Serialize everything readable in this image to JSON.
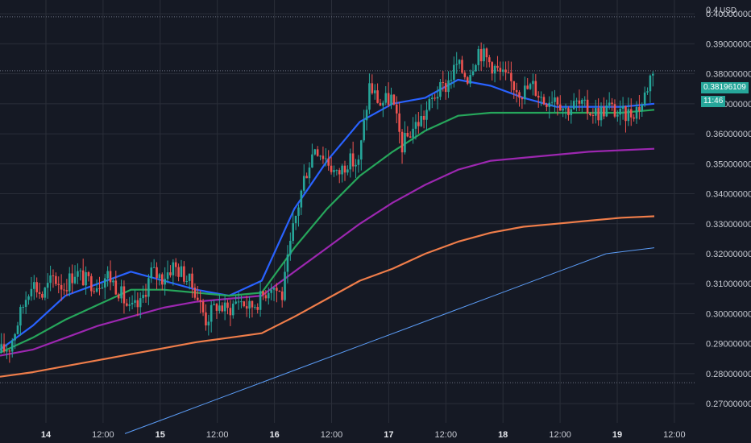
{
  "chart_data": {
    "type": "candlestick",
    "currency": "USD",
    "y_axis": {
      "ticks": [
        "0.40000000",
        "0.39000000",
        "0.38000000",
        "0.37000000",
        "0.36000000",
        "0.35000000",
        "0.34000000",
        "0.33000000",
        "0.32000000",
        "0.31000000",
        "0.30000000",
        "0.29000000",
        "0.28000000",
        "0.27000000"
      ],
      "top_partial": "0.4"
    },
    "x_axis": {
      "ticks": [
        {
          "label": "14",
          "bold": true
        },
        {
          "label": "12:00",
          "bold": false
        },
        {
          "label": "15",
          "bold": true
        },
        {
          "label": "12:00",
          "bold": false
        },
        {
          "label": "16",
          "bold": true
        },
        {
          "label": "12:00",
          "bold": false
        },
        {
          "label": "17",
          "bold": true
        },
        {
          "label": "12:00",
          "bold": false
        },
        {
          "label": "18",
          "bold": true
        },
        {
          "label": "12:00",
          "bold": false
        },
        {
          "label": "19",
          "bold": true
        },
        {
          "label": "12:00",
          "bold": false
        }
      ]
    },
    "last_price": "0.38196109",
    "countdown": "11:46",
    "horizontal_levels": [
      0.399,
      0.381,
      0.277
    ],
    "candle_close_path": [
      [
        0,
        0.287
      ],
      [
        4,
        0.289
      ],
      [
        8,
        0.3
      ],
      [
        12,
        0.311
      ],
      [
        16,
        0.306
      ],
      [
        20,
        0.312
      ],
      [
        24,
        0.309
      ],
      [
        28,
        0.314
      ],
      [
        32,
        0.311
      ],
      [
        36,
        0.31
      ],
      [
        40,
        0.313
      ],
      [
        44,
        0.308
      ],
      [
        48,
        0.301
      ],
      [
        52,
        0.303
      ],
      [
        56,
        0.314
      ],
      [
        60,
        0.312
      ],
      [
        64,
        0.316
      ],
      [
        68,
        0.313
      ],
      [
        72,
        0.308
      ],
      [
        76,
        0.298
      ],
      [
        80,
        0.303
      ],
      [
        84,
        0.301
      ],
      [
        88,
        0.305
      ],
      [
        92,
        0.302
      ],
      [
        96,
        0.305
      ],
      [
        100,
        0.31
      ],
      [
        104,
        0.306
      ],
      [
        108,
        0.328
      ],
      [
        112,
        0.345
      ],
      [
        116,
        0.356
      ],
      [
        120,
        0.352
      ],
      [
        124,
        0.346
      ],
      [
        128,
        0.351
      ],
      [
        132,
        0.35
      ],
      [
        136,
        0.376
      ],
      [
        140,
        0.37
      ],
      [
        144,
        0.372
      ],
      [
        148,
        0.356
      ],
      [
        152,
        0.362
      ],
      [
        156,
        0.366
      ],
      [
        160,
        0.373
      ],
      [
        164,
        0.376
      ],
      [
        168,
        0.383
      ],
      [
        172,
        0.379
      ],
      [
        176,
        0.388
      ],
      [
        180,
        0.384
      ],
      [
        184,
        0.38
      ],
      [
        188,
        0.377
      ],
      [
        192,
        0.374
      ],
      [
        196,
        0.376
      ],
      [
        200,
        0.371
      ],
      [
        204,
        0.373
      ],
      [
        208,
        0.368
      ],
      [
        212,
        0.37
      ],
      [
        216,
        0.368
      ],
      [
        220,
        0.367
      ],
      [
        224,
        0.369
      ],
      [
        228,
        0.366
      ],
      [
        232,
        0.367
      ],
      [
        236,
        0.37
      ],
      [
        240,
        0.382
      ]
    ],
    "candle_count": 240,
    "series": [
      {
        "color": "#2962ff",
        "values": [
          0.288,
          0.296,
          0.306,
          0.31,
          0.314,
          0.311,
          0.308,
          0.306,
          0.311,
          0.335,
          0.351,
          0.364,
          0.37,
          0.372,
          0.378,
          0.376,
          0.372,
          0.369,
          0.369,
          0.369,
          0.37
        ]
      },
      {
        "color": "#26a65b",
        "values": [
          0.287,
          0.292,
          0.298,
          0.303,
          0.308,
          0.308,
          0.307,
          0.306,
          0.307,
          0.322,
          0.335,
          0.346,
          0.354,
          0.361,
          0.366,
          0.367,
          0.367,
          0.367,
          0.367,
          0.367,
          0.368
        ]
      },
      {
        "color": "#9c27b0",
        "values": [
          0.286,
          0.288,
          0.292,
          0.296,
          0.299,
          0.302,
          0.304,
          0.305,
          0.306,
          0.314,
          0.322,
          0.33,
          0.337,
          0.343,
          0.348,
          0.351,
          0.352,
          0.353,
          0.354,
          0.3545,
          0.355
        ]
      },
      {
        "color": "#ef7d4a",
        "values": [
          0.279,
          0.2805,
          0.2825,
          0.2845,
          0.2865,
          0.2885,
          0.2905,
          0.292,
          0.2935,
          0.299,
          0.305,
          0.311,
          0.315,
          0.32,
          0.324,
          0.327,
          0.329,
          0.33,
          0.331,
          0.332,
          0.3325
        ]
      },
      {
        "color": "#5b9cf6",
        "values": [
          0.26,
          0.266,
          0.272,
          0.278,
          0.284,
          0.29,
          0.296,
          0.302,
          0.308,
          0.314,
          0.32,
          0.322
        ]
      }
    ],
    "colors": {
      "up": "#26a69a",
      "down": "#ef5350",
      "grid": "#2a2e39",
      "bg": "#151924"
    }
  }
}
